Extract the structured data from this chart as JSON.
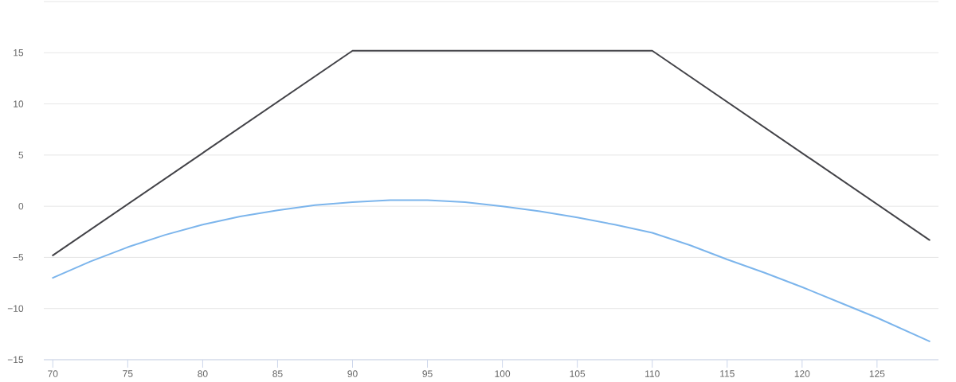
{
  "chart_data": {
    "type": "line",
    "series": [
      {
        "color": "#7cb5ec",
        "x": [
          70,
          72.5,
          75,
          77.5,
          80,
          82.5,
          85,
          87.5,
          90,
          92.5,
          95,
          97.5,
          100,
          102.5,
          105,
          107.5,
          110,
          112.5,
          115,
          117.5,
          120,
          122.5,
          125,
          128.5
        ],
        "values": [
          -7.0,
          -5.4,
          -4.0,
          -2.8,
          -1.8,
          -1.0,
          -0.4,
          0.1,
          0.4,
          0.6,
          0.6,
          0.4,
          0.0,
          -0.5,
          -1.1,
          -1.8,
          -2.6,
          -3.8,
          -5.2,
          -6.5,
          -7.9,
          -9.4,
          -10.9,
          -13.2
        ]
      },
      {
        "color": "#434348",
        "x": [
          70,
          90,
          110,
          128.5
        ],
        "values": [
          -4.8,
          15.2,
          15.2,
          -3.3
        ]
      }
    ],
    "xlim": [
      69.4,
      129.1
    ],
    "ylim": [
      -15,
      20
    ],
    "xticks": [
      70,
      75,
      80,
      85,
      90,
      95,
      100,
      105,
      110,
      115,
      120,
      125
    ],
    "yticks": [
      {
        "value": -15,
        "label": "−15"
      },
      {
        "value": -10,
        "label": "−10"
      },
      {
        "value": -5,
        "label": "−5"
      },
      0,
      5,
      10,
      15,
      {
        "value": 20,
        "label": null
      }
    ],
    "grid": "y"
  }
}
